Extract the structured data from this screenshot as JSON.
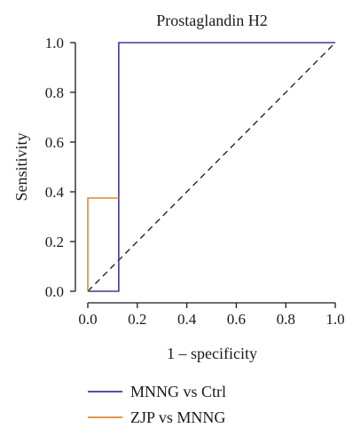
{
  "chart_data": {
    "type": "line",
    "title": "Prostaglandin H2",
    "xlabel": "1 – specificity",
    "ylabel": "Sensitivity",
    "xlim": [
      0.0,
      1.0
    ],
    "ylim": [
      0.0,
      1.0
    ],
    "xticks": [
      "0.0",
      "0.2",
      "0.4",
      "0.6",
      "0.8",
      "1.0"
    ],
    "yticks": [
      "0.0",
      "0.2",
      "0.4",
      "0.6",
      "0.8",
      "1.0"
    ],
    "grid": false,
    "legend_position": "bottom",
    "diagonal_reference": true,
    "series": [
      {
        "name": "MNNG vs Ctrl",
        "color": "#3a3a9c",
        "points": [
          [
            0.0,
            0.0
          ],
          [
            0.125,
            0.0
          ],
          [
            0.125,
            1.0
          ],
          [
            1.0,
            1.0
          ]
        ]
      },
      {
        "name": "ZJP vs MNNG",
        "color": "#e08a2c",
        "points": [
          [
            0.0,
            0.0
          ],
          [
            0.0,
            0.375
          ],
          [
            0.125,
            0.375
          ]
        ]
      }
    ]
  }
}
